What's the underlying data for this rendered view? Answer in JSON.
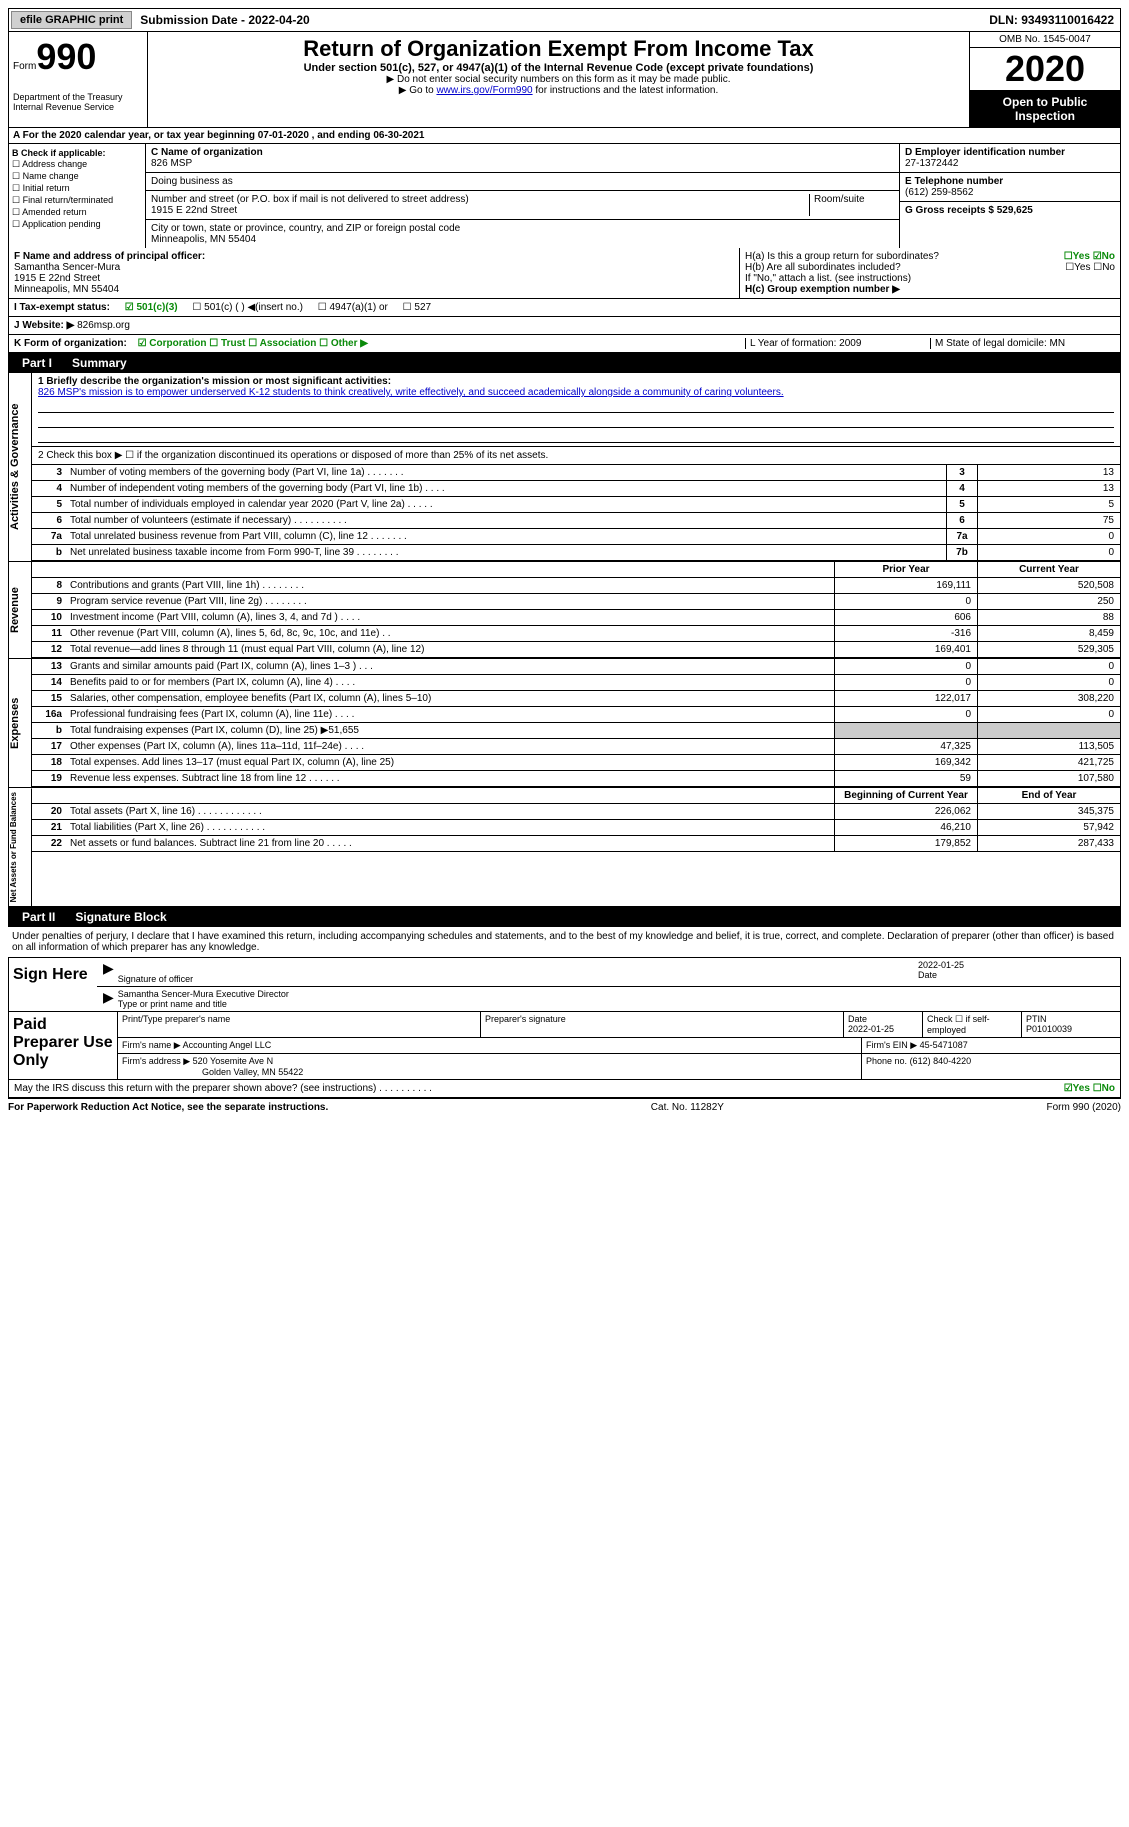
{
  "topbar": {
    "efile": "efile GRAPHIC print",
    "submission": "Submission Date - 2022-04-20",
    "dln": "DLN: 93493110016422"
  },
  "header": {
    "form_word": "Form",
    "form_num": "990",
    "dept": "Department of the Treasury\nInternal Revenue Service",
    "title": "Return of Organization Exempt From Income Tax",
    "subtitle": "Under section 501(c), 527, or 4947(a)(1) of the Internal Revenue Code (except private foundations)",
    "instr1": "▶ Do not enter social security numbers on this form as it may be made public.",
    "instr2_pre": "▶ Go to ",
    "instr2_link": "www.irs.gov/Form990",
    "instr2_post": " for instructions and the latest information.",
    "omb": "OMB No. 1545-0047",
    "year": "2020",
    "open": "Open to Public Inspection"
  },
  "period": "A  For the 2020 calendar year, or tax year beginning 07-01-2020    , and ending 06-30-2021",
  "boxB": {
    "label": "B Check if applicable:",
    "items": [
      "☐ Address change",
      "☐ Name change",
      "☐ Initial return",
      "☐ Final return/terminated",
      "☐ Amended return",
      "☐ Application pending"
    ]
  },
  "boxC": {
    "name_label": "C Name of organization",
    "name": "826 MSP",
    "dba_label": "Doing business as",
    "street_label": "Number and street (or P.O. box if mail is not delivered to street address)",
    "room_label": "Room/suite",
    "street": "1915 E 22nd Street",
    "city_label": "City or town, state or province, country, and ZIP or foreign postal code",
    "city": "Minneapolis, MN  55404"
  },
  "boxD": {
    "ein_label": "D Employer identification number",
    "ein": "27-1372442",
    "phone_label": "E Telephone number",
    "phone": "(612) 259-8562",
    "gross_label": "G Gross receipts $ 529,625"
  },
  "boxF": {
    "label": "F  Name and address of principal officer:",
    "name": "Samantha Sencer-Mura",
    "addr1": "1915 E 22nd Street",
    "addr2": "Minneapolis, MN  55404"
  },
  "boxH": {
    "ha": "H(a)  Is this a group return for subordinates?",
    "ha_ans": "☐Yes ☑No",
    "hb": "H(b)  Are all subordinates included?",
    "hb_ans": "☐Yes ☐No",
    "hb_note": "If \"No,\" attach a list. (see instructions)",
    "hc": "H(c)  Group exemption number ▶"
  },
  "rowI": {
    "label": "I  Tax-exempt status:",
    "opt1": "☑ 501(c)(3)",
    "opt2": "☐ 501(c) (  ) ◀(insert no.)",
    "opt3": "☐ 4947(a)(1) or",
    "opt4": "☐ 527"
  },
  "rowJ": {
    "label": "J  Website: ▶",
    "value": "826msp.org"
  },
  "rowK": {
    "label": "K Form of organization:",
    "opts": "☑ Corporation  ☐ Trust  ☐ Association  ☐ Other ▶",
    "l": "L Year of formation: 2009",
    "m": "M State of legal domicile: MN"
  },
  "part1": {
    "label": "Part I",
    "title": "Summary"
  },
  "mission": {
    "label": "1  Briefly describe the organization's mission or most significant activities:",
    "text": "826 MSP's mission is to empower underserved K-12 students to think creatively, write effectively, and succeed academically alongside a community of caring volunteers."
  },
  "line2": "2   Check this box ▶ ☐  if the organization discontinued its operations or disposed of more than 25% of its net assets.",
  "governance_rows": [
    {
      "n": "3",
      "d": "Number of voting members of the governing body (Part VI, line 1a)  .    .    .    .    .    .    .",
      "b": "3",
      "v": "13"
    },
    {
      "n": "4",
      "d": "Number of independent voting members of the governing body (Part VI, line 1b)    .    .    .    .",
      "b": "4",
      "v": "13"
    },
    {
      "n": "5",
      "d": "Total number of individuals employed in calendar year 2020 (Part V, line 2a)    .    .    .    .    .",
      "b": "5",
      "v": "5"
    },
    {
      "n": "6",
      "d": "Total number of volunteers (estimate if necessary)    .    .    .    .    .    .    .    .    .    .",
      "b": "6",
      "v": "75"
    },
    {
      "n": "7a",
      "d": "Total unrelated business revenue from Part VIII, column (C), line 12   .    .    .    .    .    .    .",
      "b": "7a",
      "v": "0"
    },
    {
      "n": "b",
      "d": "Net unrelated business taxable income from Form 990-T, line 39   .    .    .    .    .    .    .    .",
      "b": "7b",
      "v": "0"
    }
  ],
  "two_col_header": {
    "py": "Prior Year",
    "cy": "Current Year"
  },
  "revenue_rows": [
    {
      "n": "8",
      "d": "Contributions and grants (Part VIII, line 1h)    .    .    .    .    .    .    .    .",
      "py": "169,111",
      "cy": "520,508"
    },
    {
      "n": "9",
      "d": "Program service revenue (Part VIII, line 2g)   .    .    .    .    .    .    .    .",
      "py": "0",
      "cy": "250"
    },
    {
      "n": "10",
      "d": "Investment income (Part VIII, column (A), lines 3, 4, and 7d )   .    .    .    .",
      "py": "606",
      "cy": "88"
    },
    {
      "n": "11",
      "d": "Other revenue (Part VIII, column (A), lines 5, 6d, 8c, 9c, 10c, and 11e)   .    .",
      "py": "-316",
      "cy": "8,459"
    },
    {
      "n": "12",
      "d": "Total revenue—add lines 8 through 11 (must equal Part VIII, column (A), line 12)",
      "py": "169,401",
      "cy": "529,305"
    }
  ],
  "expense_rows": [
    {
      "n": "13",
      "d": "Grants and similar amounts paid (Part IX, column (A), lines 1–3 )   .    .    .",
      "py": "0",
      "cy": "0"
    },
    {
      "n": "14",
      "d": "Benefits paid to or for members (Part IX, column (A), line 4)   .    .    .    .",
      "py": "0",
      "cy": "0"
    },
    {
      "n": "15",
      "d": "Salaries, other compensation, employee benefits (Part IX, column (A), lines 5–10)",
      "py": "122,017",
      "cy": "308,220"
    },
    {
      "n": "16a",
      "d": "Professional fundraising fees (Part IX, column (A), line 11e)   .    .    .    .",
      "py": "0",
      "cy": "0"
    },
    {
      "n": "b",
      "d": "Total fundraising expenses (Part IX, column (D), line 25) ▶51,655",
      "py": "",
      "cy": "",
      "gray": true
    },
    {
      "n": "17",
      "d": "Other expenses (Part IX, column (A), lines 11a–11d, 11f–24e)   .    .    .    .",
      "py": "47,325",
      "cy": "113,505"
    },
    {
      "n": "18",
      "d": "Total expenses. Add lines 13–17 (must equal Part IX, column (A), line 25)",
      "py": "169,342",
      "cy": "421,725"
    },
    {
      "n": "19",
      "d": "Revenue less expenses. Subtract line 18 from line 12   .    .    .    .    .    .",
      "py": "59",
      "cy": "107,580"
    }
  ],
  "net_header": {
    "py": "Beginning of Current Year",
    "cy": "End of Year"
  },
  "net_rows": [
    {
      "n": "20",
      "d": "Total assets (Part X, line 16)   .    .    .    .    .    .    .    .    .    .    .    .",
      "py": "226,062",
      "cy": "345,375"
    },
    {
      "n": "21",
      "d": "Total liabilities (Part X, line 26)   .    .    .    .    .    .    .    .    .    .    .",
      "py": "46,210",
      "cy": "57,942"
    },
    {
      "n": "22",
      "d": "Net assets or fund balances. Subtract line 21 from line 20   .    .    .    .    .",
      "py": "179,852",
      "cy": "287,433"
    }
  ],
  "part2": {
    "label": "Part II",
    "title": "Signature Block"
  },
  "penalties": "Under penalties of perjury, I declare that I have examined this return, including accompanying schedules and statements, and to the best of my knowledge and belief, it is true, correct, and complete. Declaration of preparer (other than officer) is based on all information of which preparer has any knowledge.",
  "sign": {
    "here": "Sign Here",
    "date": "2022-01-25",
    "sig_label": "Signature of officer",
    "date_label": "Date",
    "name": "Samantha Sencer-Mura  Executive Director",
    "type_label": "Type or print name and title"
  },
  "prep": {
    "label": "Paid Preparer Use Only",
    "h1": "Print/Type preparer's name",
    "h2": "Preparer's signature",
    "h3": "Date",
    "h3v": "2022-01-25",
    "h4": "Check ☐ if self-employed",
    "h5": "PTIN",
    "h5v": "P01010039",
    "firm_label": "Firm's name    ▶",
    "firm": "Accounting Angel LLC",
    "firm_ein_label": "Firm's EIN ▶",
    "firm_ein": "45-5471087",
    "addr_label": "Firm's address ▶",
    "addr1": "520 Yosemite Ave N",
    "addr2": "Golden Valley, MN  55422",
    "phone_label": "Phone no.",
    "phone": "(612) 840-4220"
  },
  "discuss": {
    "q": "May the IRS discuss this return with the preparer shown above? (see instructions)   .    .    .    .    .    .    .    .    .    .",
    "a": "☑Yes ☐No"
  },
  "footer": {
    "left": "For Paperwork Reduction Act Notice, see the separate instructions.",
    "mid": "Cat. No. 11282Y",
    "right": "Form 990 (2020)"
  },
  "side_labels": {
    "gov": "Activities & Governance",
    "rev": "Revenue",
    "exp": "Expenses",
    "net": "Net Assets or Fund Balances"
  }
}
